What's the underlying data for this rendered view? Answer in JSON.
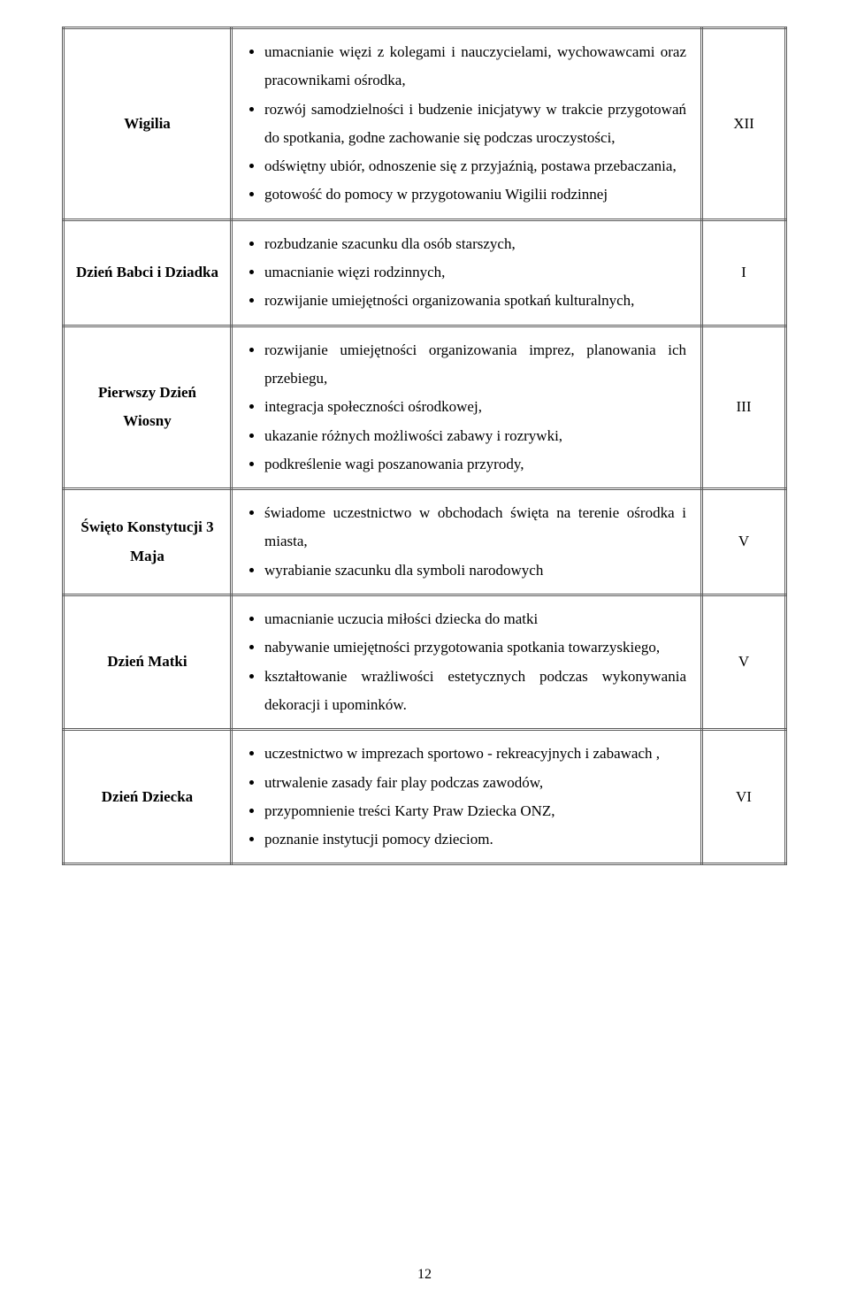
{
  "page_number": "12",
  "rows": [
    {
      "event": "Wigilia",
      "month": "XII",
      "items": [
        "umacnianie więzi z kolegami i nauczycielami, wychowawcami oraz pracownikami ośrodka,",
        "rozwój samodzielności i budzenie inicjatywy w trakcie przygotowań do spotkania, godne zachowanie się podczas uroczystości,",
        "odświętny ubiór, odnoszenie się z przyjaźnią, postawa przebaczania,",
        "gotowość do pomocy w przygotowaniu Wigilii rodzinnej"
      ]
    },
    {
      "event": "Dzień Babci i Dziadka",
      "month": "I",
      "items": [
        "rozbudzanie szacunku dla osób starszych,",
        "umacnianie więzi rodzinnych,",
        "rozwijanie umiejętności organizowania spotkań kulturalnych,"
      ]
    },
    {
      "event": "Pierwszy Dzień Wiosny",
      "month": "III",
      "items": [
        "rozwijanie umiejętności organizowania imprez, planowania ich przebiegu,",
        "integracja społeczności ośrodkowej,",
        "ukazanie różnych możliwości zabawy i rozrywki,",
        "podkreślenie wagi poszanowania przyrody,"
      ]
    },
    {
      "event": "Święto Konstytucji 3 Maja",
      "month": "V",
      "items": [
        "świadome uczestnictwo w obchodach święta na terenie ośrodka i miasta,",
        "wyrabianie szacunku dla symboli narodowych"
      ]
    },
    {
      "event": "Dzień Matki",
      "month": "V",
      "items": [
        "umacnianie uczucia miłości dziecka do matki",
        "nabywanie umiejętności przygotowania spotkania towarzyskiego,",
        "kształtowanie wrażliwości estetycznych podczas wykonywania dekoracji i upominków."
      ]
    },
    {
      "event": "Dzień Dziecka",
      "month": "VI",
      "items": [
        "uczestnictwo w imprezach sportowo - rekreacyjnych i zabawach ,",
        "utrwalenie zasady fair play podczas zawodów,",
        "przypomnienie treści Karty Praw Dziecka ONZ,",
        "poznanie instytucji pomocy dzieciom."
      ]
    }
  ]
}
